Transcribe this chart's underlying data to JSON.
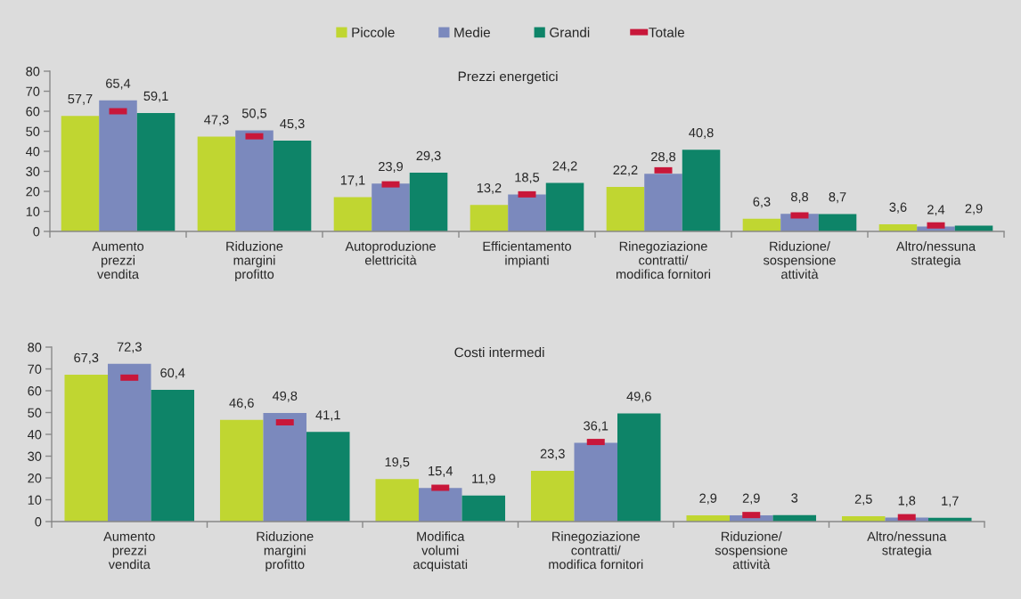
{
  "chart_data": [
    {
      "type": "bar",
      "title": "Prezzi energetici",
      "legend": "top",
      "ylim": [
        0,
        80
      ],
      "yticks": [
        0,
        10,
        20,
        30,
        40,
        50,
        60,
        70,
        80
      ],
      "categories": [
        "Aumento\nprezzi\nvendita",
        "Riduzione\nmargini\nprofitto",
        "Autoproduzione\nelettricità",
        "Efficientamento\nimpianti",
        "Rinegoziazione\ncontratti/\nmodifica fornitori",
        "Riduzione/\nsospensione\nattività",
        "Altro/nessuna\nstrategia"
      ],
      "series": [
        {
          "name": "Piccole",
          "color": "#c0d631",
          "values": [
            57.7,
            47.3,
            17.1,
            13.2,
            22.2,
            6.3,
            3.6
          ],
          "value_labels": [
            "57,7",
            "47,3",
            "17,1",
            "13,2",
            "22,2",
            "6,3",
            "3,6"
          ]
        },
        {
          "name": "Medie",
          "color": "#7b89bd",
          "values": [
            65.4,
            50.5,
            23.9,
            18.5,
            28.8,
            8.8,
            2.4
          ],
          "value_labels": [
            "65,4",
            "50,5",
            "23,9",
            "18,5",
            "28,8",
            "8,8",
            "2,4"
          ]
        },
        {
          "name": "Grandi",
          "color": "#0e8468",
          "values": [
            59.1,
            45.3,
            29.3,
            24.2,
            40.8,
            8.7,
            2.9
          ],
          "value_labels": [
            "59,1",
            "45,3",
            "29,3",
            "24,2",
            "40,8",
            "8,7",
            "2,9"
          ]
        },
        {
          "name": "Totale",
          "type": "scatter",
          "color": "#c8173a",
          "x": [
            "Aumento\nprezzi\nvendita",
            "Riduzione\nmargini\nprofitto",
            "Autoproduzione\nelettricità",
            "Efficientamento\nimpianti",
            "Rinegoziazione\ncontratti/\nmodifica fornitori",
            "Riduzione/\nsospensione\nattività",
            "Altro/nessuna\nstrategia"
          ],
          "values": [
            60,
            47.5,
            23.5,
            18.5,
            30.5,
            8,
            3
          ]
        }
      ]
    },
    {
      "type": "bar",
      "title": "Costi intermedi",
      "ylim": [
        0,
        80
      ],
      "yticks": [
        0,
        10,
        20,
        30,
        40,
        50,
        60,
        70,
        80
      ],
      "categories": [
        "Aumento\nprezzi\nvendita",
        "Riduzione\nmargini\nprofitto",
        "Modifica\nvolumi\nacquistati",
        "Rinegoziazione\ncontratti/\nmodifica fornitori",
        "Riduzione/\nsospensione\nattività",
        "Altro/nessuna\nstrategia"
      ],
      "series": [
        {
          "name": "Piccole",
          "color": "#c0d631",
          "values": [
            67.3,
            46.6,
            19.5,
            23.3,
            2.9,
            2.5
          ],
          "value_labels": [
            "67,3",
            "46,6",
            "19,5",
            "23,3",
            "2,9",
            "2,5"
          ]
        },
        {
          "name": "Medie",
          "color": "#7b89bd",
          "values": [
            72.3,
            49.8,
            15.4,
            36.1,
            2.9,
            1.8
          ],
          "value_labels": [
            "72,3",
            "49,8",
            "15,4",
            "36,1",
            "2,9",
            "1,8"
          ]
        },
        {
          "name": "Grandi",
          "color": "#0e8468",
          "values": [
            60.4,
            41.1,
            11.9,
            49.6,
            3,
            1.7
          ],
          "value_labels": [
            "60,4",
            "41,1",
            "11,9",
            "49,6",
            "3",
            "1,7"
          ]
        },
        {
          "name": "Totale",
          "type": "scatter",
          "color": "#c8173a",
          "x": [
            "Aumento\nprezzi\nvendita",
            "Riduzione\nmargini\nprofitto",
            "Modifica\nvolumi\nacquistati",
            "Rinegoziazione\ncontratti/\nmodifica fornitori",
            "Riduzione/\nsospensione\nattività",
            "Altro/nessuna\nstrategia"
          ],
          "values": [
            66,
            45.5,
            15.5,
            36.5,
            3,
            2
          ]
        }
      ]
    }
  ]
}
